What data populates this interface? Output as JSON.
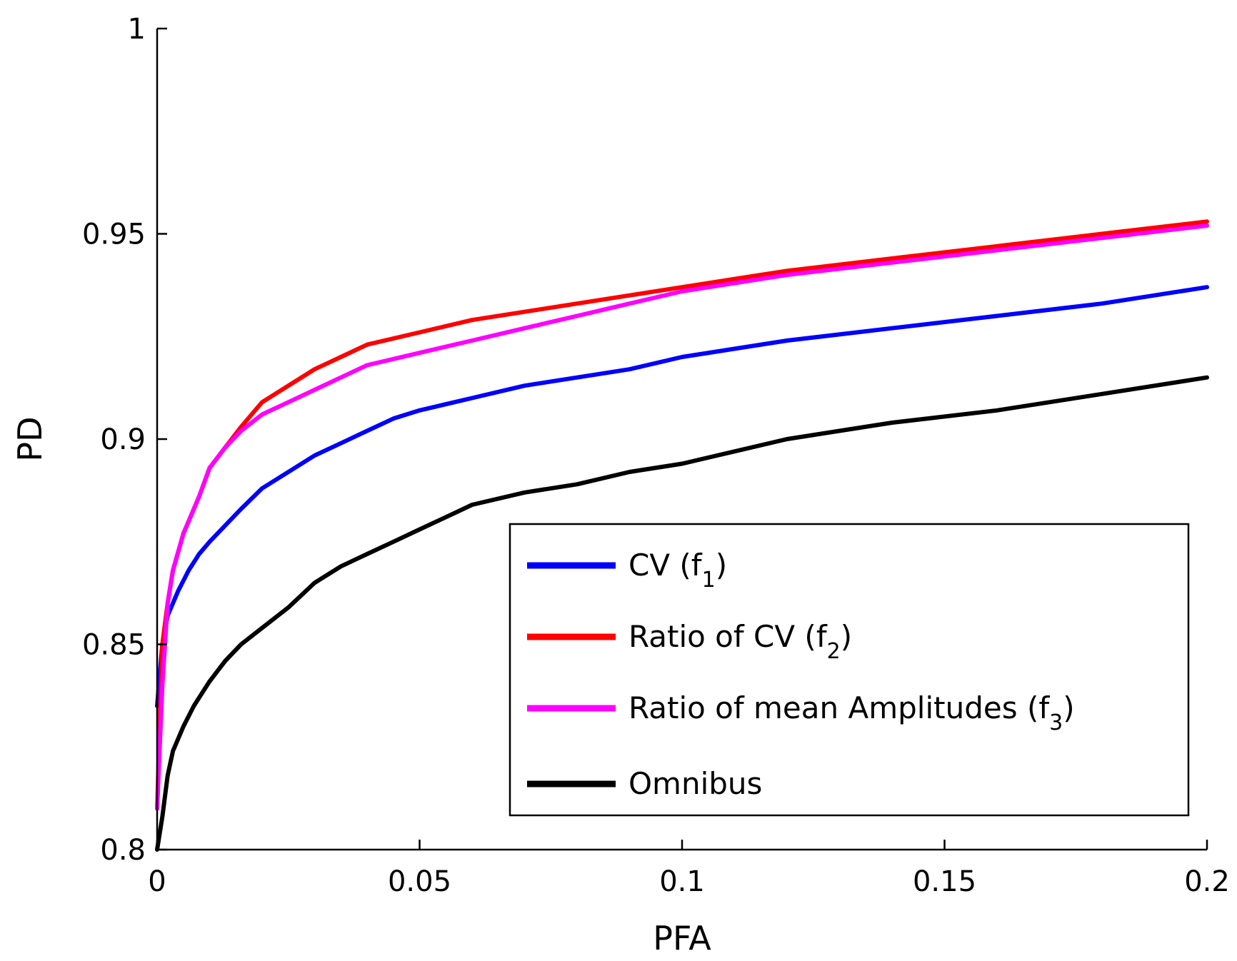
{
  "chart_data": {
    "type": "line",
    "title": "",
    "xlabel": "PFA",
    "ylabel": "PD",
    "xlim": [
      0,
      0.2
    ],
    "ylim": [
      0.8,
      1.0
    ],
    "xticks": [
      0,
      0.05,
      0.1,
      0.15,
      0.2
    ],
    "xtick_labels": [
      "0",
      "0.05",
      "0.1",
      "0.15",
      "0.2"
    ],
    "yticks": [
      0.8,
      0.85,
      0.9,
      0.95,
      1.0
    ],
    "ytick_labels": [
      "0.8",
      "0.85",
      "0.9",
      "0.95",
      "1"
    ],
    "grid": false,
    "legend_position": "bottom-right",
    "series": [
      {
        "name": "CV",
        "subscript_label": "f",
        "subscript": "1",
        "color": "#0000ff",
        "x": [
          0,
          0.001,
          0.002,
          0.004,
          0.006,
          0.008,
          0.01,
          0.013,
          0.016,
          0.02,
          0.025,
          0.03,
          0.035,
          0.04,
          0.045,
          0.05,
          0.06,
          0.07,
          0.08,
          0.09,
          0.1,
          0.12,
          0.14,
          0.16,
          0.18,
          0.2
        ],
        "y": [
          0.835,
          0.85,
          0.857,
          0.863,
          0.868,
          0.872,
          0.875,
          0.879,
          0.883,
          0.888,
          0.892,
          0.896,
          0.899,
          0.902,
          0.905,
          0.907,
          0.91,
          0.913,
          0.915,
          0.917,
          0.92,
          0.924,
          0.927,
          0.93,
          0.933,
          0.937
        ]
      },
      {
        "name": "Ratio of CV",
        "subscript_label": "f",
        "subscript": "2",
        "color": "#ff0000",
        "x": [
          0,
          0.001,
          0.002,
          0.003,
          0.005,
          0.008,
          0.01,
          0.013,
          0.016,
          0.02,
          0.025,
          0.03,
          0.035,
          0.04,
          0.05,
          0.06,
          0.07,
          0.08,
          0.09,
          0.1,
          0.12,
          0.14,
          0.16,
          0.18,
          0.2
        ],
        "y": [
          0.81,
          0.85,
          0.86,
          0.868,
          0.877,
          0.886,
          0.893,
          0.898,
          0.903,
          0.909,
          0.913,
          0.917,
          0.92,
          0.923,
          0.926,
          0.929,
          0.931,
          0.933,
          0.935,
          0.937,
          0.941,
          0.944,
          0.947,
          0.95,
          0.953
        ]
      },
      {
        "name": "Ratio of mean Amplitudes",
        "subscript_label": "f",
        "subscript": "3",
        "color": "#ff00ff",
        "x": [
          0,
          0.001,
          0.002,
          0.003,
          0.005,
          0.008,
          0.01,
          0.013,
          0.016,
          0.02,
          0.025,
          0.03,
          0.035,
          0.04,
          0.05,
          0.06,
          0.07,
          0.08,
          0.09,
          0.1,
          0.12,
          0.14,
          0.16,
          0.18,
          0.2
        ],
        "y": [
          0.81,
          0.84,
          0.86,
          0.868,
          0.877,
          0.886,
          0.893,
          0.898,
          0.902,
          0.906,
          0.909,
          0.912,
          0.915,
          0.918,
          0.921,
          0.924,
          0.927,
          0.93,
          0.933,
          0.936,
          0.94,
          0.943,
          0.946,
          0.949,
          0.952
        ]
      },
      {
        "name": "Omnibus",
        "subscript_label": "",
        "subscript": "",
        "color": "#000000",
        "x": [
          0,
          0.001,
          0.002,
          0.003,
          0.005,
          0.007,
          0.01,
          0.013,
          0.016,
          0.02,
          0.025,
          0.03,
          0.035,
          0.04,
          0.045,
          0.05,
          0.055,
          0.06,
          0.07,
          0.08,
          0.09,
          0.1,
          0.12,
          0.14,
          0.16,
          0.18,
          0.2
        ],
        "y": [
          0.8,
          0.808,
          0.818,
          0.824,
          0.83,
          0.835,
          0.841,
          0.846,
          0.85,
          0.854,
          0.859,
          0.865,
          0.869,
          0.872,
          0.875,
          0.878,
          0.881,
          0.884,
          0.887,
          0.889,
          0.892,
          0.894,
          0.9,
          0.904,
          0.907,
          0.911,
          0.915
        ]
      }
    ]
  }
}
